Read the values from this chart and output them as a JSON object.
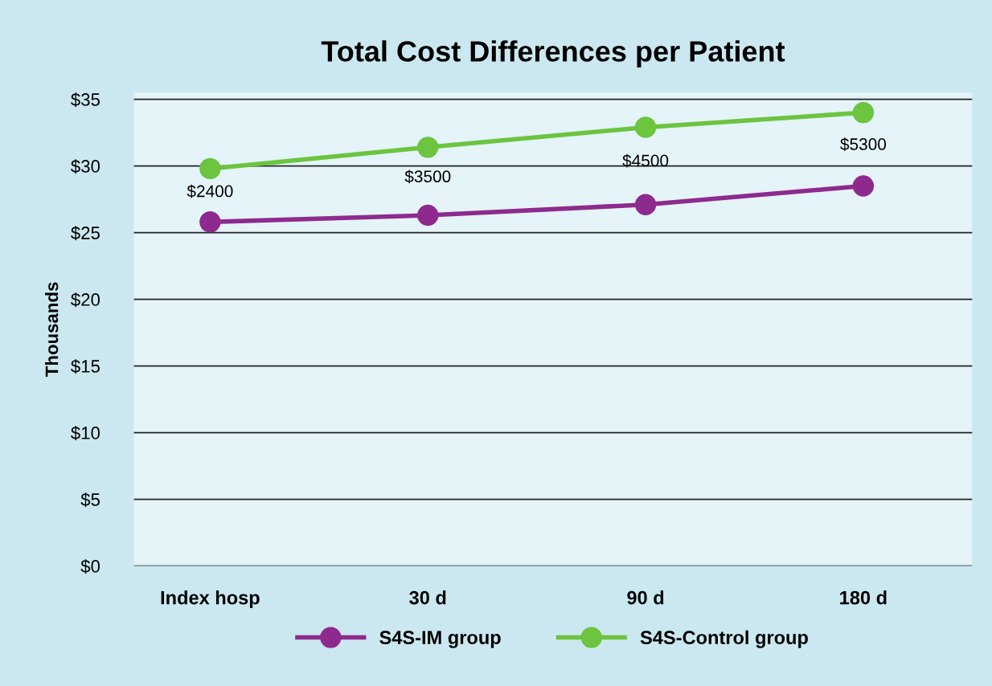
{
  "chart_data": {
    "type": "line",
    "title": "Total Cost Differences per Patient",
    "ylabel": "Thousands",
    "categories": [
      "Index hosp",
      "30 d",
      "90 d",
      "180 d"
    ],
    "series": [
      {
        "name": "S4S-IM group",
        "color": "#8e2a8e",
        "values": [
          25.8,
          26.3,
          27.1,
          28.5
        ]
      },
      {
        "name": "S4S-Control group",
        "color": "#6cc43f",
        "values": [
          29.8,
          31.4,
          32.9,
          34.0
        ]
      }
    ],
    "ylim": [
      0,
      35.5
    ],
    "yticks": [
      {
        "value": 0,
        "label": "$0"
      },
      {
        "value": 5,
        "label": "$5"
      },
      {
        "value": 10,
        "label": "$10"
      },
      {
        "value": 15,
        "label": "$15"
      },
      {
        "value": 20,
        "label": "$20"
      },
      {
        "value": 25,
        "label": "$25"
      },
      {
        "value": 30,
        "label": "$30"
      },
      {
        "value": 35,
        "label": "$35"
      }
    ],
    "annotations": [
      "$2400",
      "$3500",
      "$4500",
      "$5300"
    ],
    "grid": "y",
    "legend": "bottom",
    "marker": "circle",
    "line_style": "solid"
  }
}
